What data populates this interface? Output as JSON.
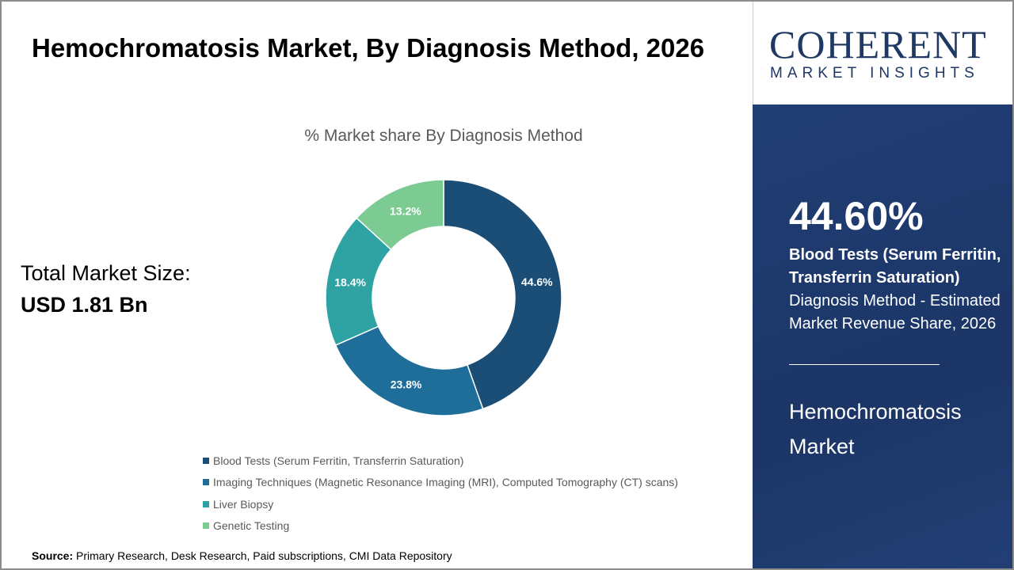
{
  "title": "Hemochromatosis Market, By Diagnosis Method, 2026",
  "total_label": "Total Market Size:",
  "total_value": "USD 1.81 Bn",
  "source_label": "Source:",
  "source_text": "Primary Research, Desk Research, Paid subscriptions, CMI Data Repository",
  "logo": {
    "line1": "COHERENT",
    "line2": "MARKET INSIGHTS"
  },
  "panel": {
    "percent": "44.60%",
    "desc_bold": "Blood Tests (Serum Ferritin, Transferrin Saturation)",
    "desc_rest": " Diagnosis Method - Estimated Market Revenue Share, 2026",
    "market": "Hemochromatosis Market"
  },
  "chart_data": {
    "type": "pie",
    "donut": true,
    "title": "% Market share By Diagnosis Method",
    "categories": [
      "Blood Tests (Serum Ferritin, Transferrin Saturation)",
      "Imaging Techniques (Magnetic Resonance Imaging (MRI), Computed Tomography (CT) scans)",
      "Liver Biopsy",
      "Genetic Testing"
    ],
    "values": [
      44.6,
      23.8,
      18.4,
      13.2
    ],
    "labels": [
      "44.6%",
      "23.8%",
      "18.4%",
      "13.2%"
    ],
    "colors": [
      "#1b4e76",
      "#1f6e9a",
      "#2fa2a4",
      "#7ccb93"
    ],
    "legend": "bottom"
  }
}
